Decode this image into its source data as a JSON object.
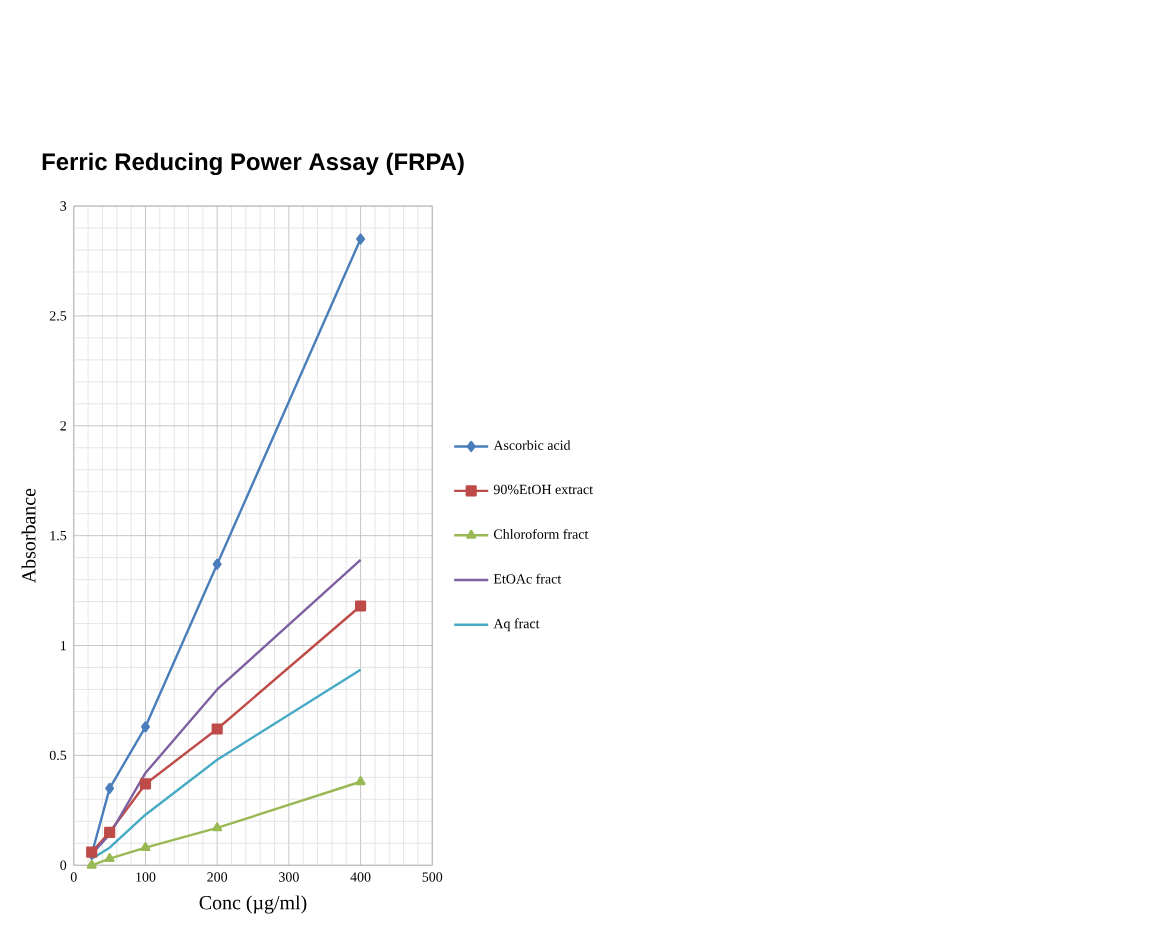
{
  "chart_data": {
    "type": "line",
    "title": "Ferric Reducing Power Assay (FRPA)",
    "xlabel": "Conc (µg/ml)",
    "ylabel": "Absorbance",
    "x": [
      25,
      50,
      100,
      200,
      400
    ],
    "series": [
      {
        "name": "Ascorbic acid",
        "color": "#4a7ebb",
        "marker": "diamond",
        "values": [
          0.05,
          0.35,
          0.63,
          1.37,
          2.85
        ]
      },
      {
        "name": "90%EtOH extract",
        "color": "#be4b48",
        "marker": "square",
        "values": [
          0.06,
          0.15,
          0.37,
          0.62,
          1.18
        ]
      },
      {
        "name": "Chloroform fract",
        "color": "#98b954",
        "marker": "triangle",
        "values": [
          0.0,
          0.03,
          0.08,
          0.17,
          0.38
        ]
      },
      {
        "name": "EtOAc fract",
        "color": "#7d60a0",
        "marker": "none",
        "values": [
          0.05,
          0.14,
          0.42,
          0.8,
          1.39
        ]
      },
      {
        "name": "Aq fract",
        "color": "#46aac5",
        "marker": "none",
        "values": [
          0.03,
          0.08,
          0.23,
          0.48,
          0.89
        ]
      }
    ],
    "xlim": [
      0,
      500
    ],
    "xticks": [
      0,
      100,
      200,
      300,
      400,
      500
    ],
    "ylim": [
      0,
      3
    ],
    "yticks": [
      0,
      0.5,
      1,
      1.5,
      2,
      2.5,
      3
    ],
    "grid": true,
    "legend": "right"
  }
}
